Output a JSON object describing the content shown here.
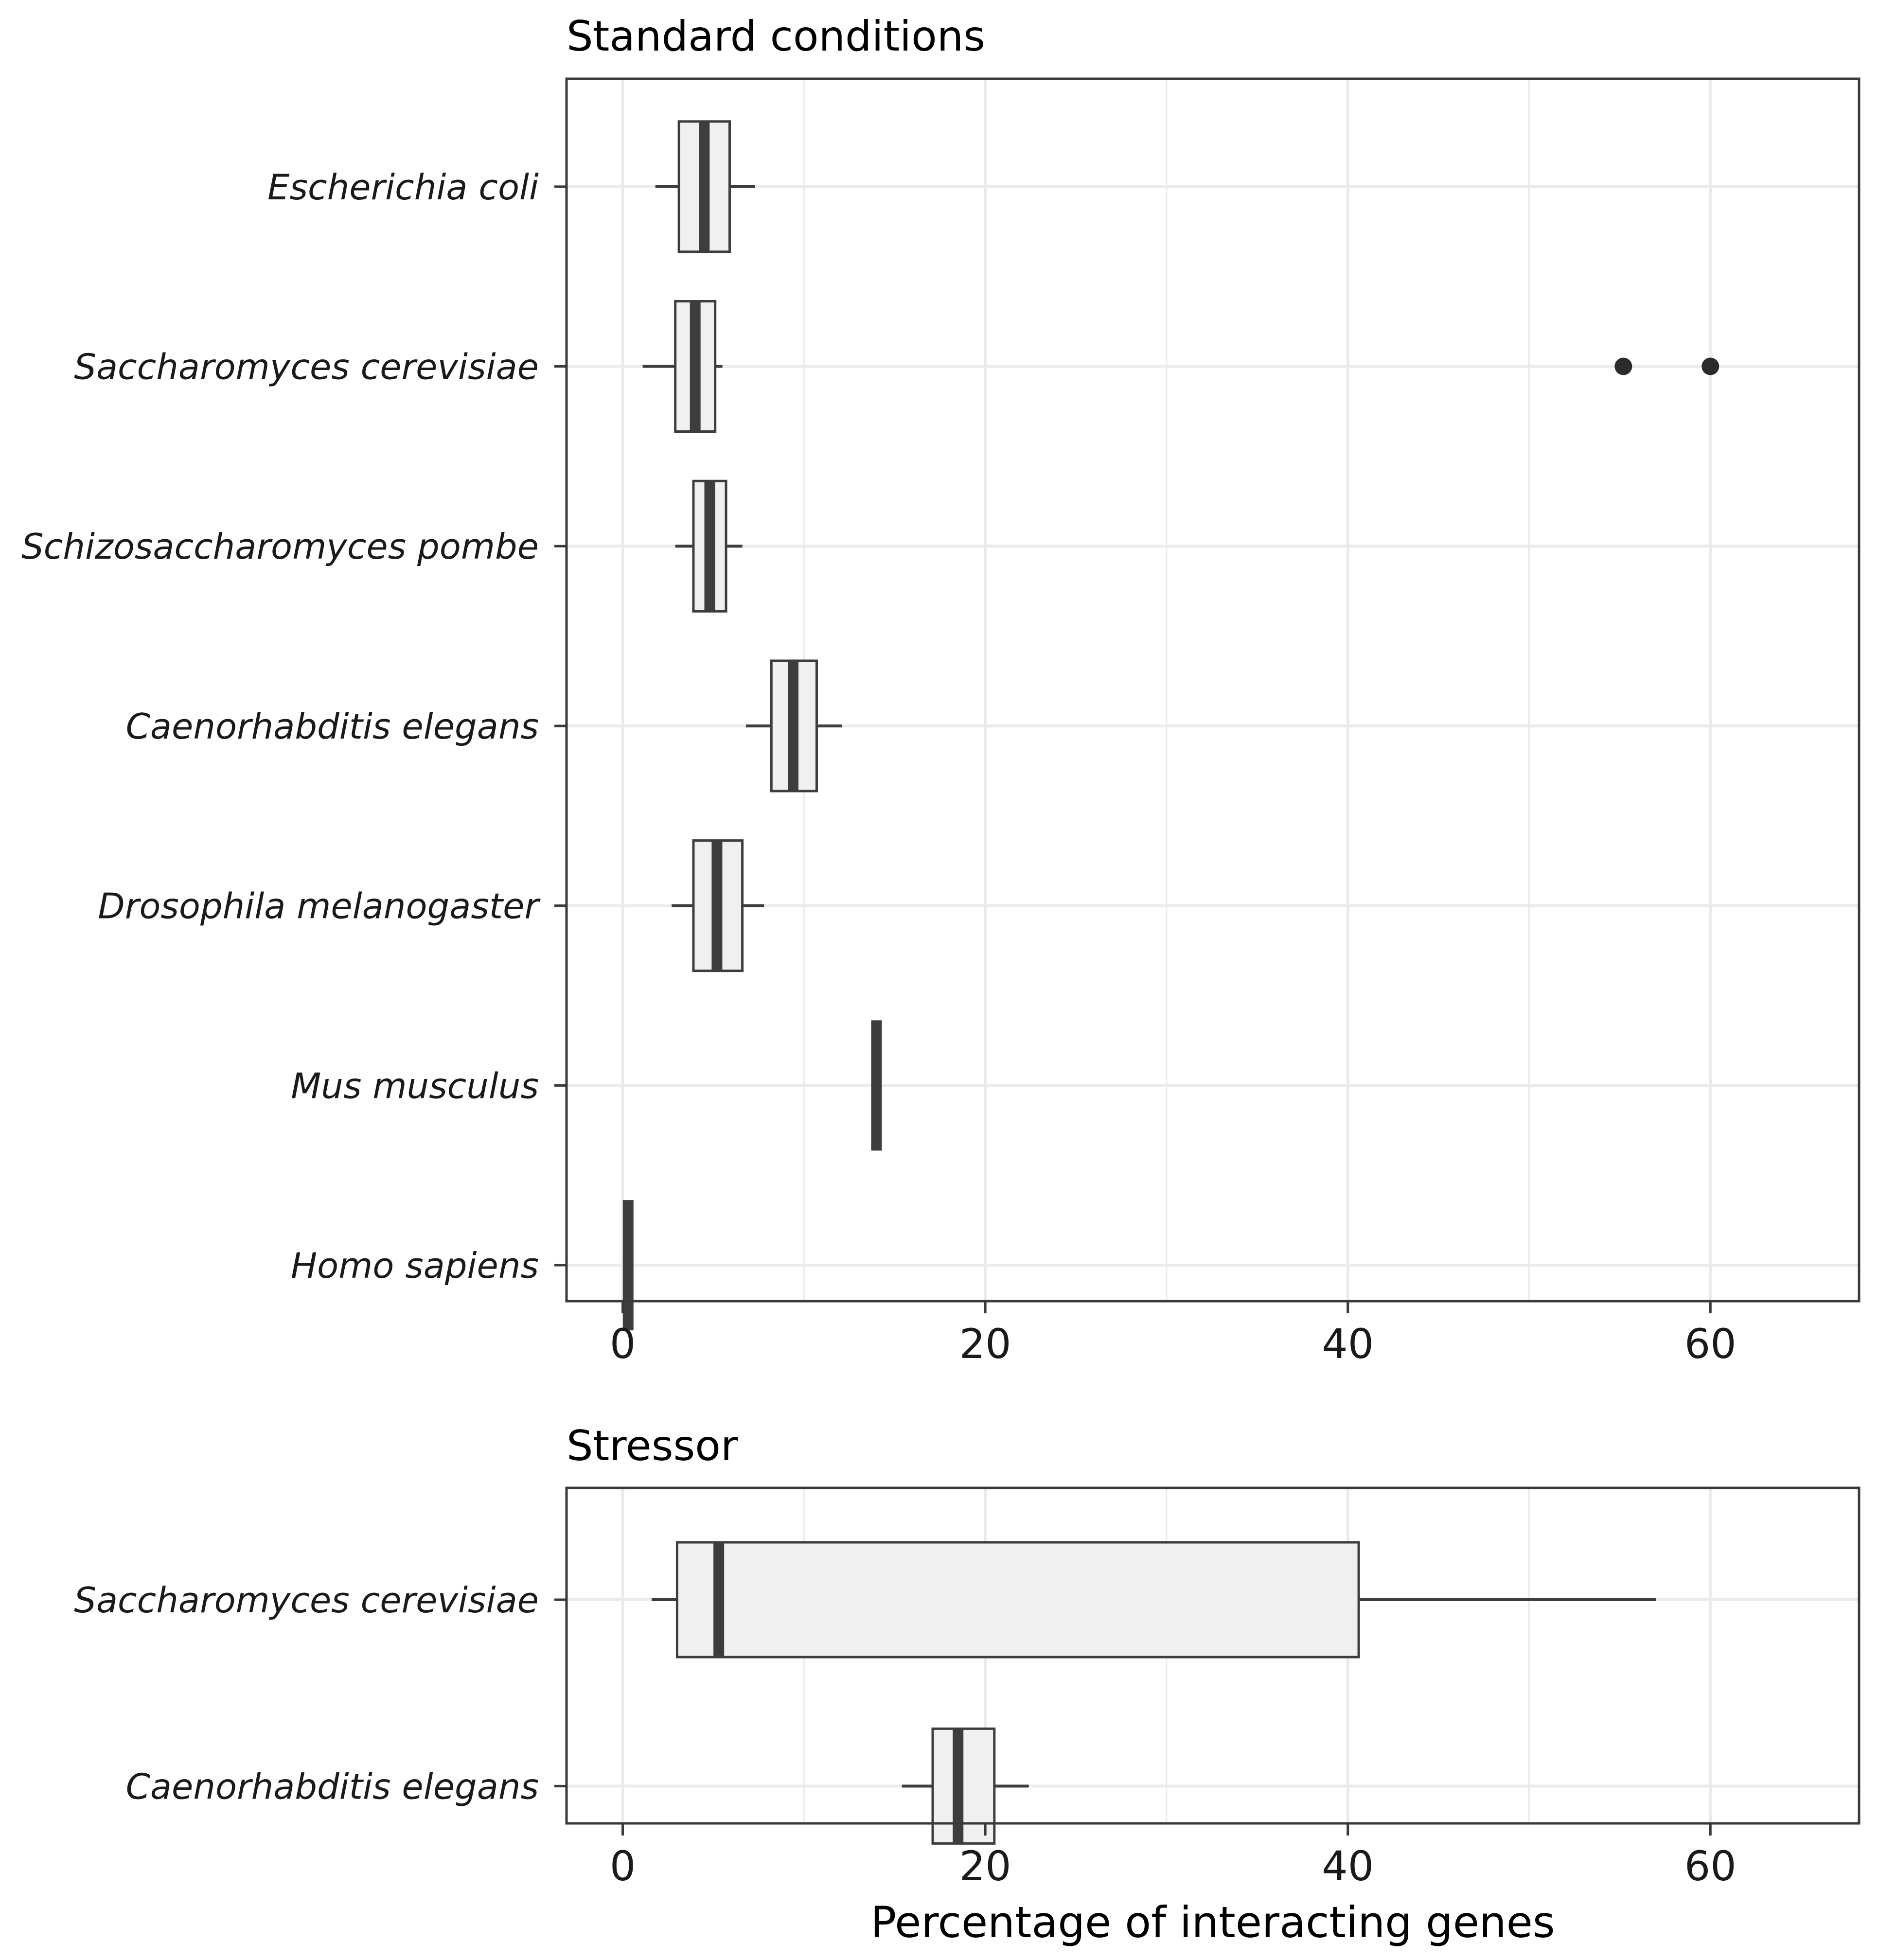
{
  "colors": {
    "box_fill": "#f0f0f0",
    "box_stroke": "#3d3d3d",
    "median": "#3d3d3d",
    "whisker": "#3d3d3d",
    "outlier": "#2b2b2b",
    "grid": "#ebebeb",
    "panel_border": "#3a3a3a",
    "tick": "#3a3a3a"
  },
  "chart_data": [
    {
      "type": "boxplot",
      "orientation": "horizontal",
      "title": "Standard conditions",
      "xlabel": "",
      "ylabel": "",
      "xlim": [
        -3.1,
        68.2
      ],
      "x_ticks": [
        0,
        20,
        40,
        60
      ],
      "x_tick_labels": [
        "0",
        "20",
        "40",
        "60"
      ],
      "grid": true,
      "categories": [
        "Escherichia coli",
        "Saccharomyces cerevisiae",
        "Schizosaccharomyces pombe",
        "Caenorhabditis elegans",
        "Drosophila melanogaster",
        "Mus musculus",
        "Homo sapiens"
      ],
      "boxes": [
        {
          "label": "Escherichia coli",
          "whisker_low": 1.8,
          "q1": 3.1,
          "median": 4.5,
          "q3": 5.9,
          "whisker_high": 7.3,
          "outliers": []
        },
        {
          "label": "Saccharomyces cerevisiae",
          "whisker_low": 1.1,
          "q1": 2.9,
          "median": 4.0,
          "q3": 5.1,
          "whisker_high": 5.5,
          "outliers": [
            55.2,
            60.0
          ]
        },
        {
          "label": "Schizosaccharomyces pombe",
          "whisker_low": 2.9,
          "q1": 3.9,
          "median": 4.8,
          "q3": 5.7,
          "whisker_high": 6.6,
          "outliers": []
        },
        {
          "label": "Caenorhabditis elegans",
          "whisker_low": 6.8,
          "q1": 8.2,
          "median": 9.4,
          "q3": 10.7,
          "whisker_high": 12.1,
          "outliers": []
        },
        {
          "label": "Drosophila melanogaster",
          "whisker_low": 2.7,
          "q1": 3.9,
          "median": 5.2,
          "q3": 6.6,
          "whisker_high": 7.8,
          "outliers": []
        },
        {
          "label": "Mus musculus",
          "whisker_low": 14.0,
          "q1": 14.0,
          "median": 14.0,
          "q3": 14.0,
          "whisker_high": 14.0,
          "outliers": []
        },
        {
          "label": "Homo sapiens",
          "whisker_low": 0.3,
          "q1": 0.3,
          "median": 0.3,
          "q3": 0.3,
          "whisker_high": 0.3,
          "outliers": []
        }
      ]
    },
    {
      "type": "boxplot",
      "orientation": "horizontal",
      "title": "Stressor",
      "xlabel": "Percentage of interacting genes",
      "ylabel": "",
      "xlim": [
        -3.1,
        68.2
      ],
      "x_ticks": [
        0,
        20,
        40,
        60
      ],
      "x_tick_labels": [
        "0",
        "20",
        "40",
        "60"
      ],
      "grid": true,
      "categories": [
        "Saccharomyces cerevisiae",
        "Caenorhabditis elegans"
      ],
      "boxes": [
        {
          "label": "Saccharomyces cerevisiae",
          "whisker_low": 1.6,
          "q1": 3.0,
          "median": 5.3,
          "q3": 40.6,
          "whisker_high": 57.0,
          "outliers": []
        },
        {
          "label": "Caenorhabditis elegans",
          "whisker_low": 15.4,
          "q1": 17.1,
          "median": 18.5,
          "q3": 20.5,
          "whisker_high": 22.4,
          "outliers": []
        }
      ]
    }
  ]
}
